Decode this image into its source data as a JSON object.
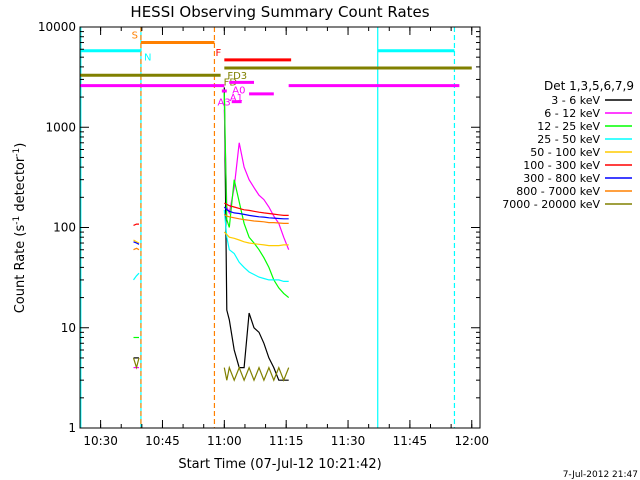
{
  "chart_data": {
    "type": "line",
    "title": "HESSI Observing Summary Count Rates",
    "xlabel": "Start Time (07-Jul-12 10:21:42)",
    "ylabel_main": "Count Rate (s",
    "ylabel_sup1": "-1",
    "ylabel_mid": " detector",
    "ylabel_sup2": "-1",
    "ylabel_end": ")",
    "footer": "7-Jul-2012 21:47",
    "yscale": "log",
    "ylim": [
      1,
      10000
    ],
    "xlim": [
      10.4167,
      12.0333
    ],
    "x_ticks": [
      {
        "v": 10.5,
        "label": "10:30"
      },
      {
        "v": 10.75,
        "label": "10:45"
      },
      {
        "v": 11.0,
        "label": "11:00"
      },
      {
        "v": 11.25,
        "label": "11:15"
      },
      {
        "v": 11.5,
        "label": "11:30"
      },
      {
        "v": 11.75,
        "label": "11:45"
      },
      {
        "v": 12.0,
        "label": "12:00"
      }
    ],
    "y_ticks": [
      {
        "v": 1,
        "label": "1"
      },
      {
        "v": 10,
        "label": "10"
      },
      {
        "v": 100,
        "label": "100"
      },
      {
        "v": 1000,
        "label": "1000"
      },
      {
        "v": 10000,
        "label": "10000"
      }
    ],
    "legend_title": "Det 1,3,5,6,7,9",
    "legend_position": "right",
    "series": [
      {
        "name": "3 - 6 keV",
        "color": "#000000",
        "x": [
          10.633,
          10.645,
          10.655,
          11.0,
          11.01,
          11.02,
          11.04,
          11.06,
          11.08,
          11.1,
          11.12,
          11.14,
          11.16,
          11.18,
          11.2,
          11.22,
          11.24,
          11.26
        ],
        "y": [
          5,
          5,
          5,
          2500,
          15,
          12,
          6,
          4,
          4,
          14,
          10,
          9,
          7,
          5,
          4,
          3,
          3,
          3
        ]
      },
      {
        "name": "6 - 12 keV",
        "color": "#ff00ff",
        "x": [
          10.633,
          10.645,
          10.655,
          11.0,
          11.01,
          11.02,
          11.04,
          11.06,
          11.08,
          11.1,
          11.12,
          11.14,
          11.16,
          11.18,
          11.2,
          11.22,
          11.24,
          11.26
        ],
        "y": [
          4,
          4,
          4,
          1500,
          160,
          140,
          250,
          700,
          400,
          300,
          250,
          210,
          190,
          160,
          130,
          110,
          80,
          60
        ]
      },
      {
        "name": "12 - 25 keV",
        "color": "#00ff00",
        "x": [
          10.633,
          10.645,
          10.655,
          11.0,
          11.01,
          11.02,
          11.04,
          11.06,
          11.08,
          11.1,
          11.12,
          11.14,
          11.16,
          11.18,
          11.2,
          11.22,
          11.24,
          11.26
        ],
        "y": [
          8,
          8,
          8,
          2200,
          120,
          100,
          300,
          180,
          110,
          80,
          70,
          60,
          50,
          40,
          30,
          25,
          22,
          20
        ]
      },
      {
        "name": "25 - 50 keV",
        "color": "#00ffff",
        "x": [
          10.633,
          10.645,
          10.655,
          11.0,
          11.01,
          11.02,
          11.04,
          11.06,
          11.08,
          11.1,
          11.12,
          11.14,
          11.16,
          11.18,
          11.2,
          11.22,
          11.24,
          11.26
        ],
        "y": [
          30,
          33,
          35,
          150,
          80,
          60,
          55,
          45,
          40,
          36,
          34,
          32,
          31,
          30,
          30,
          30,
          29,
          29
        ]
      },
      {
        "name": "50 - 100 keV",
        "color": "#ffcc00",
        "x": [
          10.633,
          10.645,
          10.655,
          11.0,
          11.01,
          11.02,
          11.04,
          11.06,
          11.08,
          11.1,
          11.12,
          11.14,
          11.16,
          11.18,
          11.2,
          11.22,
          11.24,
          11.26
        ],
        "y": [
          75,
          72,
          70,
          90,
          85,
          80,
          78,
          75,
          72,
          70,
          69,
          68,
          67,
          66,
          66,
          66,
          67,
          67
        ]
      },
      {
        "name": "100 - 300 keV",
        "color": "#ff0000",
        "x": [
          10.633,
          10.645,
          10.655,
          11.0,
          11.01,
          11.02,
          11.04,
          11.06,
          11.08,
          11.1,
          11.12,
          11.14,
          11.16,
          11.18,
          11.2,
          11.22,
          11.24,
          11.26
        ],
        "y": [
          105,
          108,
          108,
          175,
          170,
          165,
          160,
          155,
          150,
          148,
          145,
          142,
          140,
          138,
          136,
          134,
          132,
          132
        ]
      },
      {
        "name": "300 - 800 keV",
        "color": "#0000ff",
        "x": [
          10.633,
          10.645,
          10.655,
          11.0,
          11.01,
          11.02,
          11.04,
          11.06,
          11.08,
          11.1,
          11.12,
          11.14,
          11.16,
          11.18,
          11.2,
          11.22,
          11.24,
          11.26
        ],
        "y": [
          72,
          70,
          68,
          160,
          150,
          145,
          140,
          138,
          135,
          132,
          130,
          128,
          127,
          125,
          124,
          123,
          122,
          122
        ]
      },
      {
        "name": "800 - 7000 keV",
        "color": "#ff8000",
        "x": [
          10.633,
          10.645,
          10.655,
          11.0,
          11.01,
          11.02,
          11.04,
          11.06,
          11.08,
          11.1,
          11.12,
          11.14,
          11.16,
          11.18,
          11.2,
          11.22,
          11.24,
          11.26
        ],
        "y": [
          60,
          62,
          60,
          135,
          130,
          128,
          125,
          122,
          120,
          118,
          116,
          115,
          114,
          112,
          112,
          111,
          110,
          110
        ]
      },
      {
        "name": "7000 - 20000 keV",
        "color": "#808000",
        "x": [
          10.633,
          10.645,
          10.655,
          11.0,
          11.01,
          11.02,
          11.04,
          11.06,
          11.08,
          11.1,
          11.12,
          11.14,
          11.16,
          11.18,
          11.2,
          11.22,
          11.24,
          11.26
        ],
        "y": [
          5,
          4,
          5,
          4,
          3,
          4,
          3,
          4,
          3,
          4,
          3,
          4,
          3,
          4,
          3,
          4,
          3,
          4
        ]
      }
    ],
    "flag_bars": [
      {
        "label": "S",
        "color": "#ff8000",
        "x0": 10.663,
        "x1": 10.96,
        "y": 7000,
        "label_at": "start"
      },
      {
        "label": "N",
        "color": "#00ffff",
        "x0": 10.4167,
        "x1": 10.663,
        "y": 5800,
        "label_at": "end"
      },
      {
        "label": "",
        "color": "#00ffff",
        "x0": 11.62,
        "x1": 11.93,
        "y": 5800,
        "label_at": "none"
      },
      {
        "label": "F",
        "color": "#ff0000",
        "x0": 11.0,
        "x1": 11.27,
        "y": 4700,
        "label_at": "start"
      },
      {
        "label": "FD",
        "color": "#808000",
        "x0": 10.4167,
        "x1": 10.985,
        "y": 3300,
        "label_at": "end"
      },
      {
        "label": "FD3",
        "color": "#808000",
        "x0": 11.0,
        "x1": 12.0,
        "y": 3900,
        "label_at": "start_low"
      },
      {
        "label": "A0",
        "color": "#ff00ff",
        "x0": 11.02,
        "x1": 11.12,
        "y": 2800,
        "label_at": "start_low"
      },
      {
        "label": "",
        "color": "#ff00ff",
        "x0": 10.4167,
        "x1": 11.0,
        "y": 2600,
        "label_at": "none"
      },
      {
        "label": "",
        "color": "#ff00ff",
        "x0": 11.26,
        "x1": 11.95,
        "y": 2600,
        "label_at": "none"
      },
      {
        "label": "A1",
        "color": "#ff00ff",
        "x0": 10.99,
        "x1": 11.01,
        "y": 2300,
        "label_at": "end"
      },
      {
        "label": "",
        "color": "#ff00ff",
        "x0": 11.1,
        "x1": 11.2,
        "y": 2150,
        "label_at": "none"
      },
      {
        "label": "A3",
        "color": "#ff00ff",
        "x0": 11.03,
        "x1": 11.07,
        "y": 1800,
        "label_at": "end_before"
      }
    ],
    "vlines": [
      {
        "x": 10.42,
        "color": "#00ffff",
        "dash": false
      },
      {
        "x": 10.663,
        "color": "#00ffff",
        "dash": false
      },
      {
        "x": 10.663,
        "color": "#ff8000",
        "dash": true
      },
      {
        "x": 10.96,
        "color": "#ff8000",
        "dash": true
      },
      {
        "x": 11.62,
        "color": "#00ffff",
        "dash": false
      },
      {
        "x": 11.93,
        "color": "#00ffff",
        "dash": true
      }
    ]
  }
}
